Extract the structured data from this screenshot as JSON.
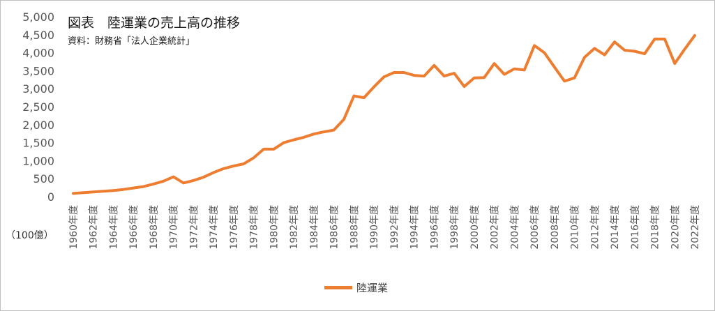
{
  "chart_data": {
    "type": "line",
    "title": "図表　陸運業の売上高の推移",
    "subtitle": "資料：財務省「法人企業統計」",
    "unit_label": "（100億）",
    "ylim": [
      0,
      5000
    ],
    "y_ticks": [
      "5,000",
      "4,500",
      "4,000",
      "3,500",
      "3,000",
      "2,500",
      "2,000",
      "1,500",
      "1,000",
      "500",
      "0"
    ],
    "x_tick_labels": [
      "1960年度",
      "1962年度",
      "1964年度",
      "1966年度",
      "1968年度",
      "1970年度",
      "1972年度",
      "1974年度",
      "1976年度",
      "1978年度",
      "1980年度",
      "1982年度",
      "1984年度",
      "1986年度",
      "1988年度",
      "1990年度",
      "1992年度",
      "1994年度",
      "1996年度",
      "1998年度",
      "2000年度",
      "2002年度",
      "2004年度",
      "2006年度",
      "2008年度",
      "2010年度",
      "2012年度",
      "2014年度",
      "2016年度",
      "2018年度",
      "2020年度",
      "2022年度"
    ],
    "x": [
      1960,
      1961,
      1962,
      1963,
      1964,
      1965,
      1966,
      1967,
      1968,
      1969,
      1970,
      1971,
      1972,
      1973,
      1974,
      1975,
      1976,
      1977,
      1978,
      1979,
      1980,
      1981,
      1982,
      1983,
      1984,
      1985,
      1986,
      1987,
      1988,
      1989,
      1990,
      1991,
      1992,
      1993,
      1994,
      1995,
      1996,
      1997,
      1998,
      1999,
      2000,
      2001,
      2002,
      2003,
      2004,
      2005,
      2006,
      2007,
      2008,
      2009,
      2010,
      2011,
      2012,
      2013,
      2014,
      2015,
      2016,
      2017,
      2018,
      2019,
      2020,
      2021,
      2022
    ],
    "series": [
      {
        "name": "陸運業",
        "color": "#ED7D31",
        "values": [
          90,
          110,
          130,
          150,
          170,
          200,
          240,
          280,
          350,
          430,
          550,
          380,
          450,
          540,
          670,
          780,
          850,
          910,
          1080,
          1320,
          1320,
          1500,
          1580,
          1650,
          1740,
          1800,
          1850,
          2150,
          2800,
          2750,
          3050,
          3330,
          3450,
          3450,
          3370,
          3350,
          3650,
          3350,
          3430,
          3060,
          3300,
          3310,
          3700,
          3400,
          3550,
          3520,
          4200,
          4000,
          3600,
          3210,
          3300,
          3870,
          4120,
          3940,
          4300,
          4070,
          4040,
          3970,
          4380,
          4380,
          3700,
          4100,
          4480
        ]
      }
    ],
    "grid": false,
    "legend": "bottom"
  }
}
